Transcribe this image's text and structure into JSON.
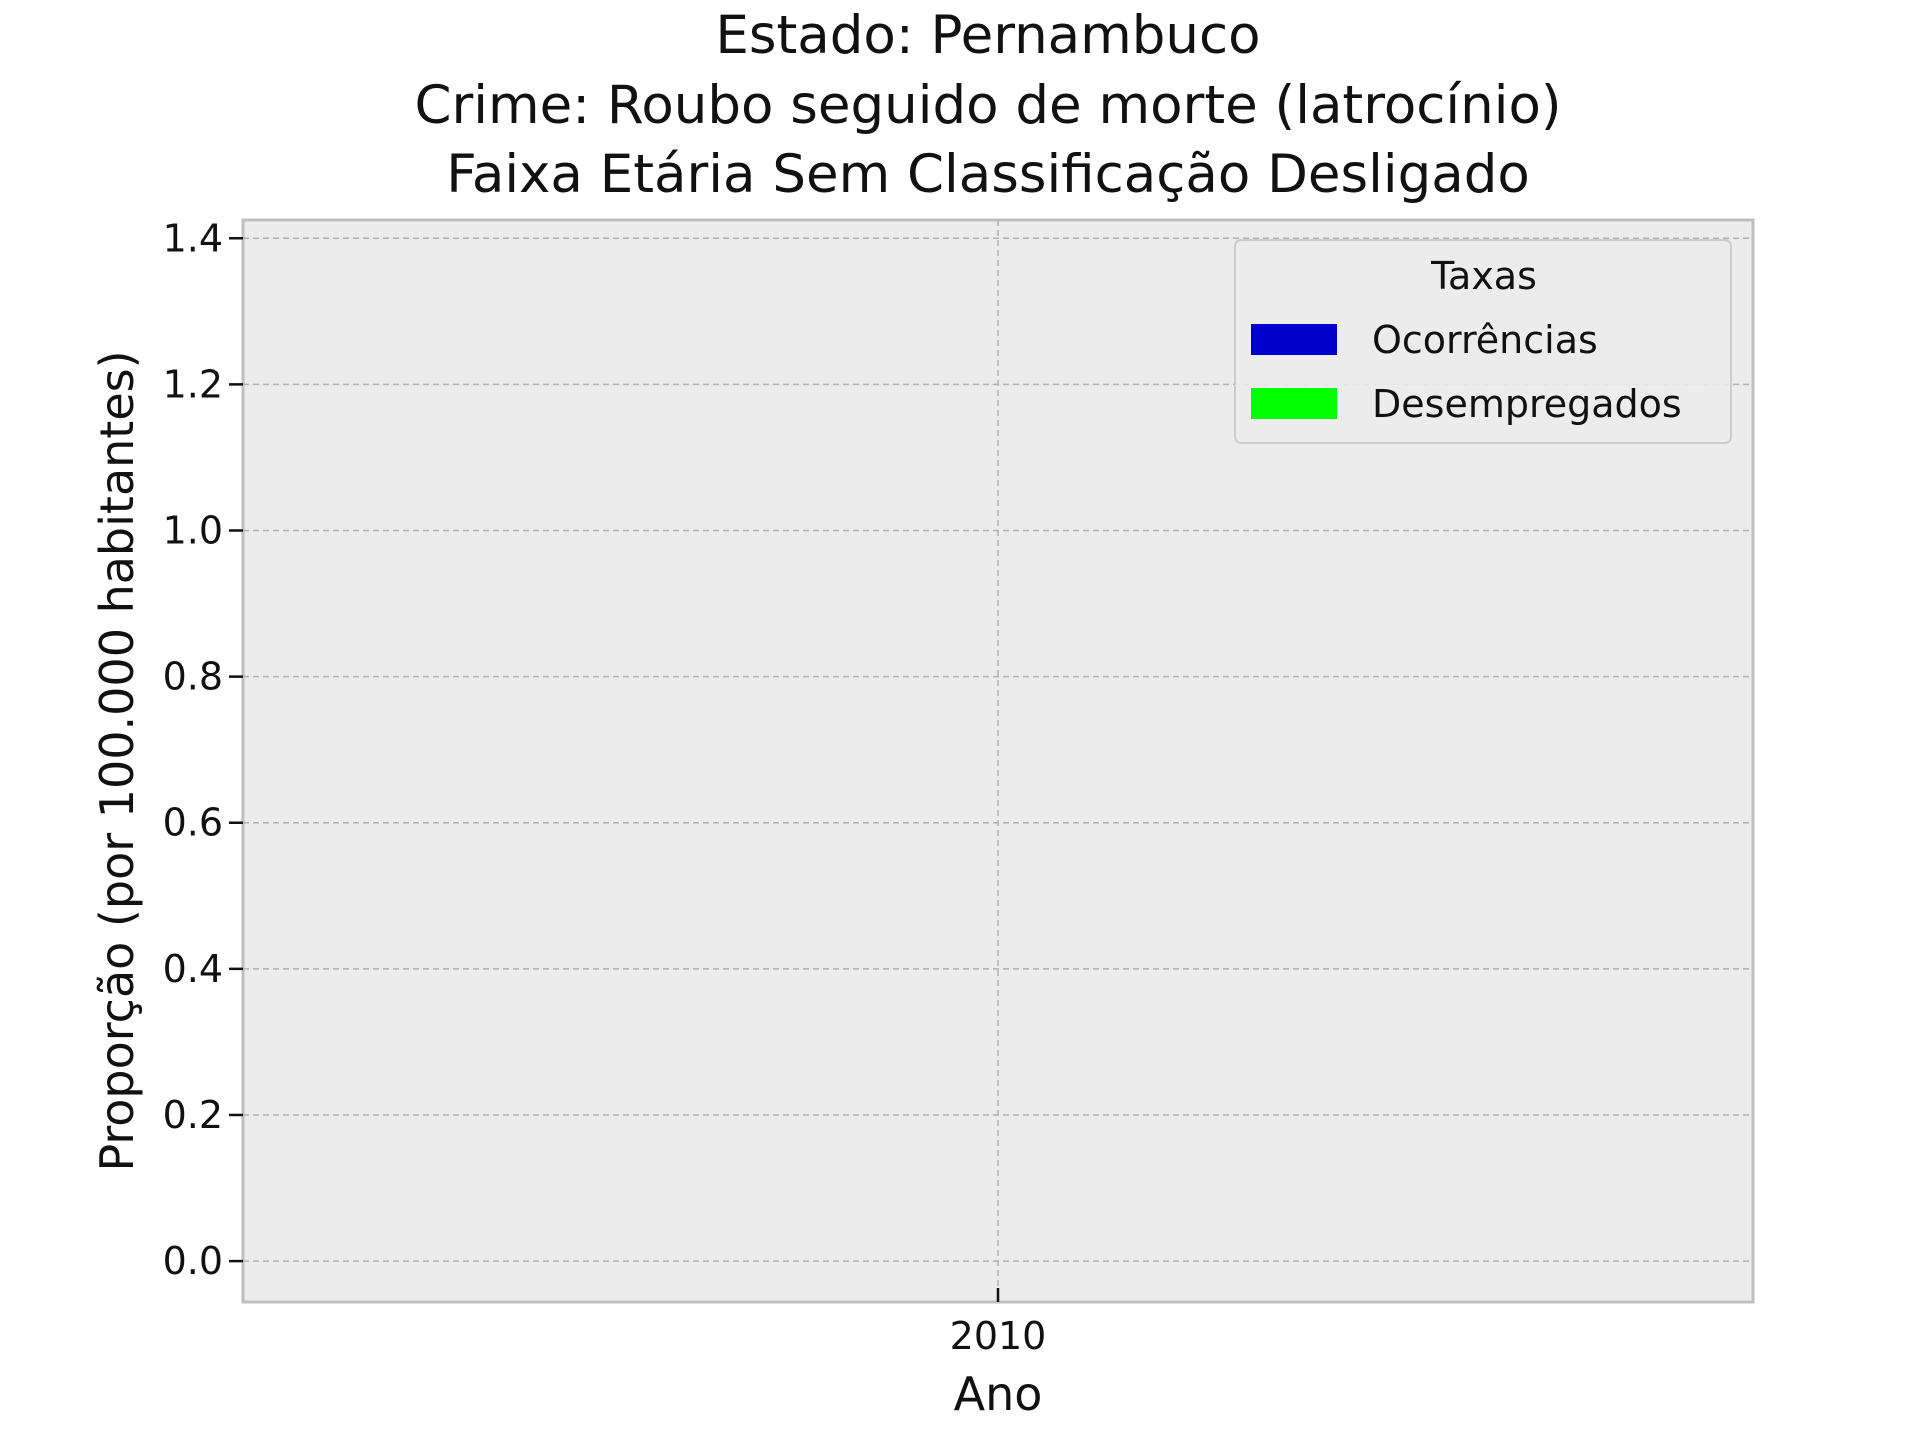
{
  "chart_data": {
    "type": "bar",
    "title_lines": [
      "Estado: Pernambuco",
      "Crime: Roubo seguido de morte (latrocínio)",
      "Faixa Etária Sem Classificação   Desligado"
    ],
    "xlabel": "Ano",
    "ylabel": "Proporção (por 100.000 habitantes)",
    "categories": [
      "2010"
    ],
    "ylim": [
      -0.056,
      1.425
    ],
    "yticks": [
      "0.0",
      "0.2",
      "0.4",
      "0.6",
      "0.8",
      "1.0",
      "1.2",
      "1.4"
    ],
    "ytick_values": [
      0.0,
      0.2,
      0.4,
      0.6,
      0.8,
      1.0,
      1.2,
      1.4
    ],
    "grid": true,
    "legend": {
      "title": "Taxas",
      "placement": "top-right",
      "entries": [
        {
          "name": "Ocorrências",
          "color": "#0000cc"
        },
        {
          "name": "Desempregados",
          "color": "#00ff00"
        }
      ]
    },
    "series": [
      {
        "name": "Ocorrências",
        "values": [
          0
        ]
      },
      {
        "name": "Desempregados",
        "values": [
          0
        ]
      }
    ]
  }
}
